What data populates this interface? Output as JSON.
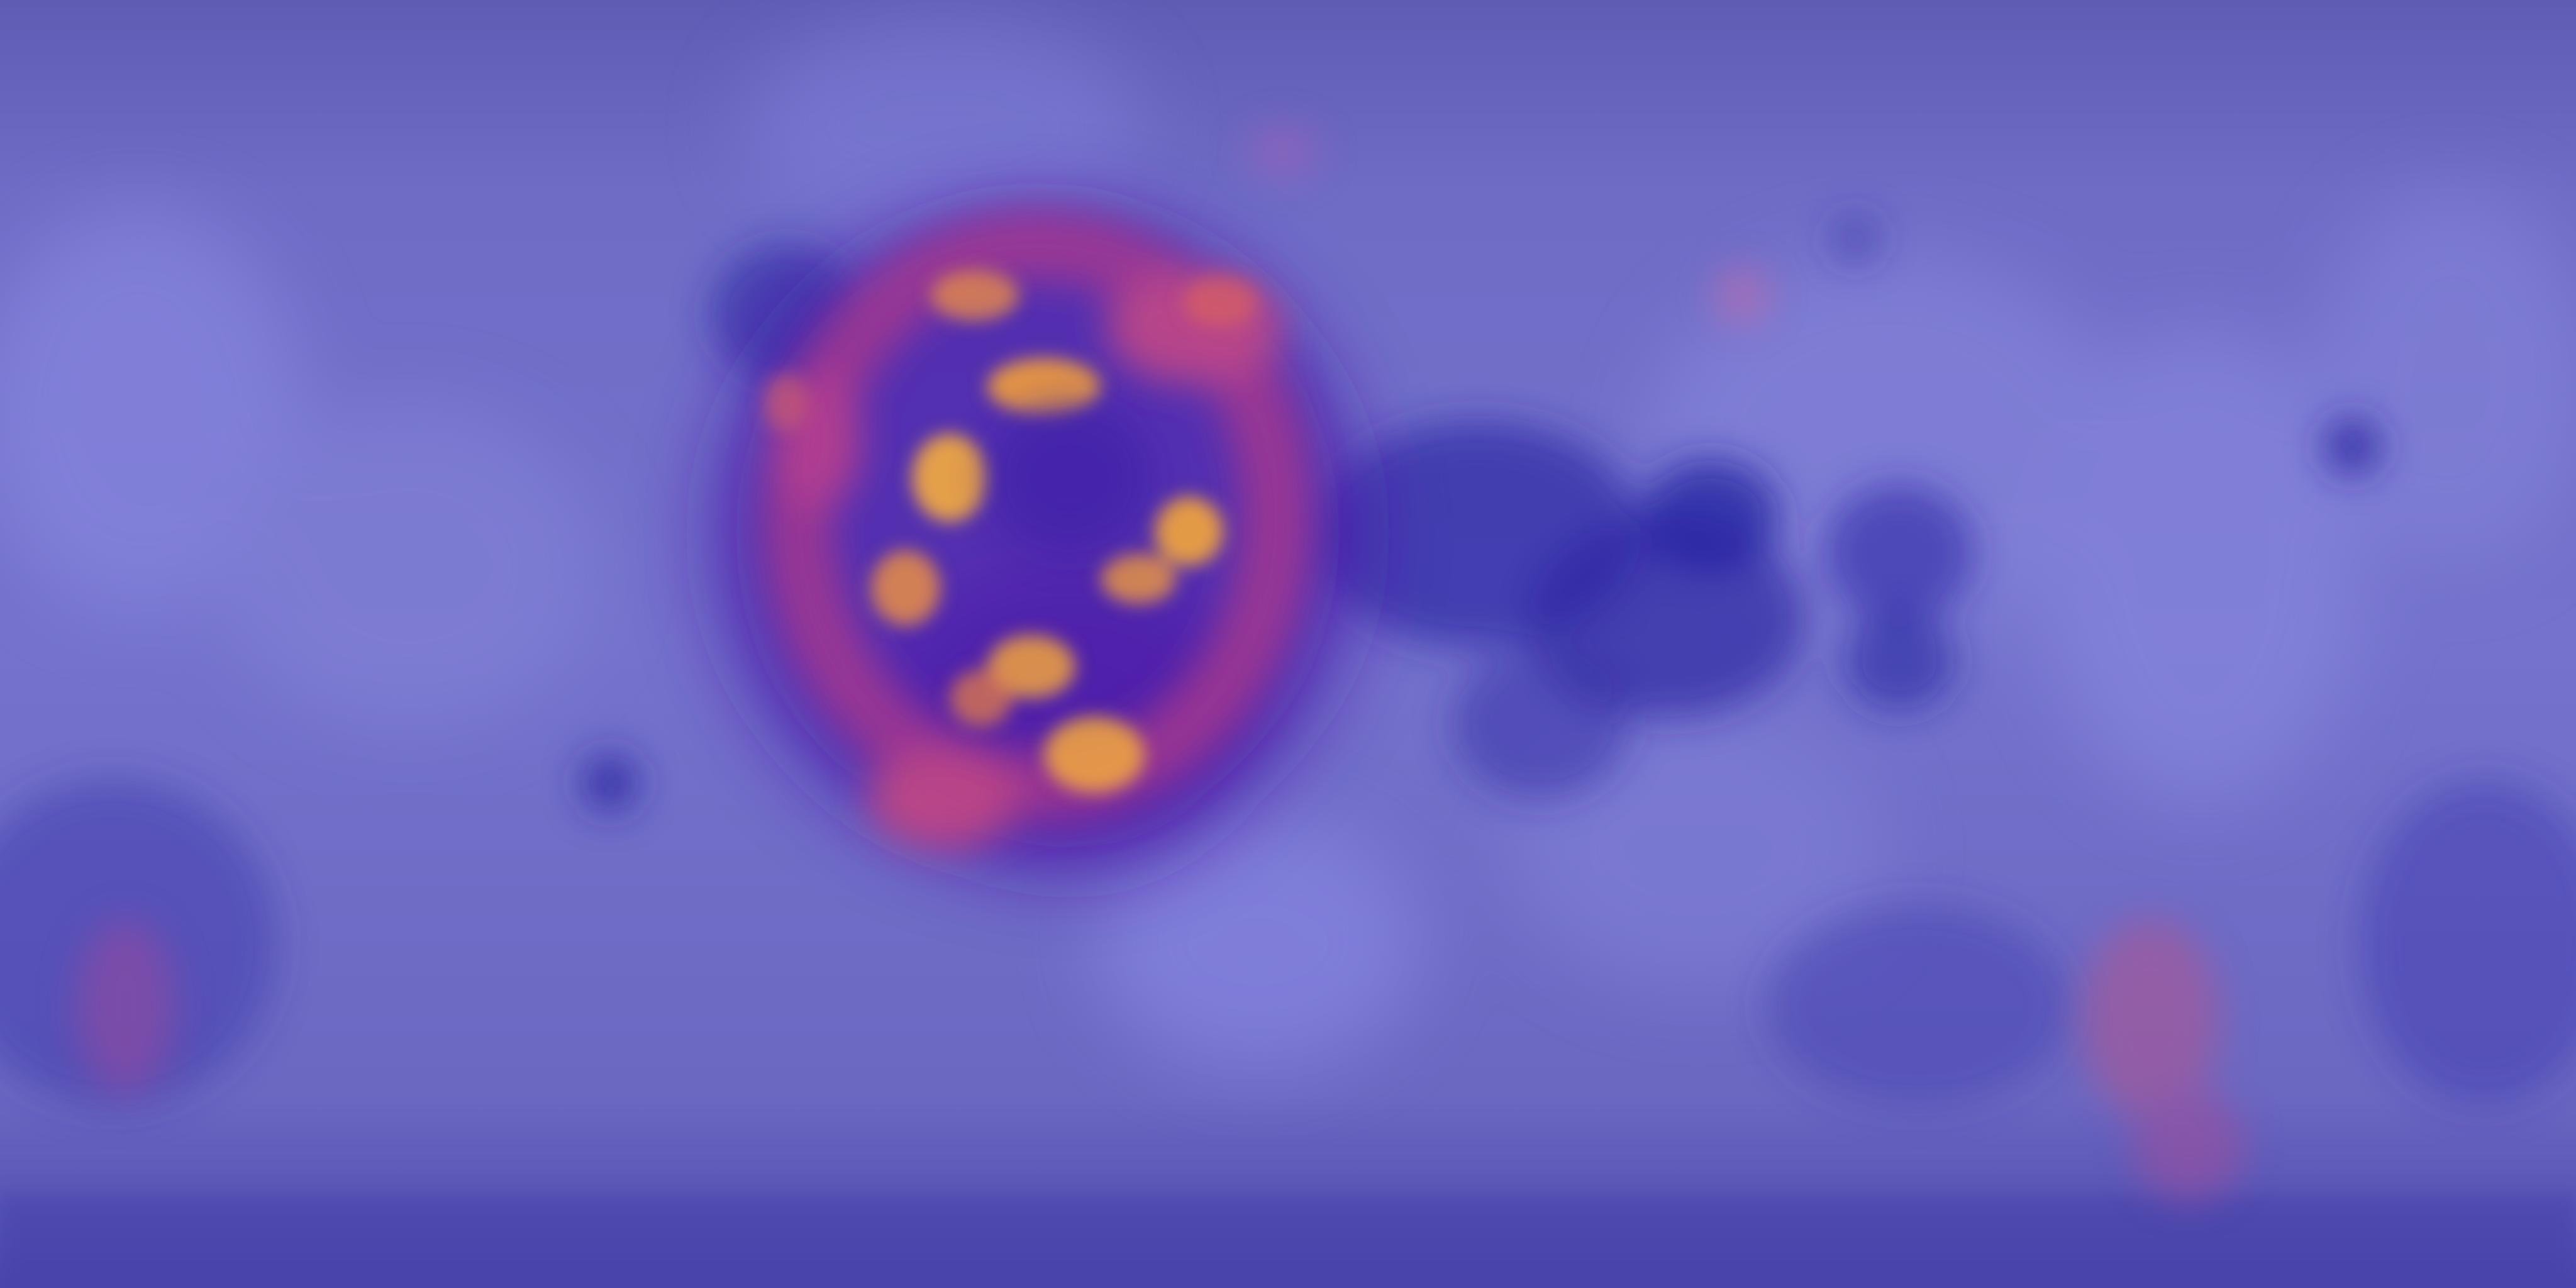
{
  "map": {
    "projection": "equirectangular",
    "base_layer": "lunar-albedo",
    "overlay": "heatmap",
    "overlay_colormap": "plasma",
    "colors": {
      "base": "#6b68bf",
      "base_light": "#8b8ae0",
      "base_dark": "#3a36a3",
      "mare_dark": "#2a24a0",
      "heat_low": "#5a1bb0",
      "heat_mid": "#c0418a",
      "heat_high": "#f2a23a"
    }
  }
}
